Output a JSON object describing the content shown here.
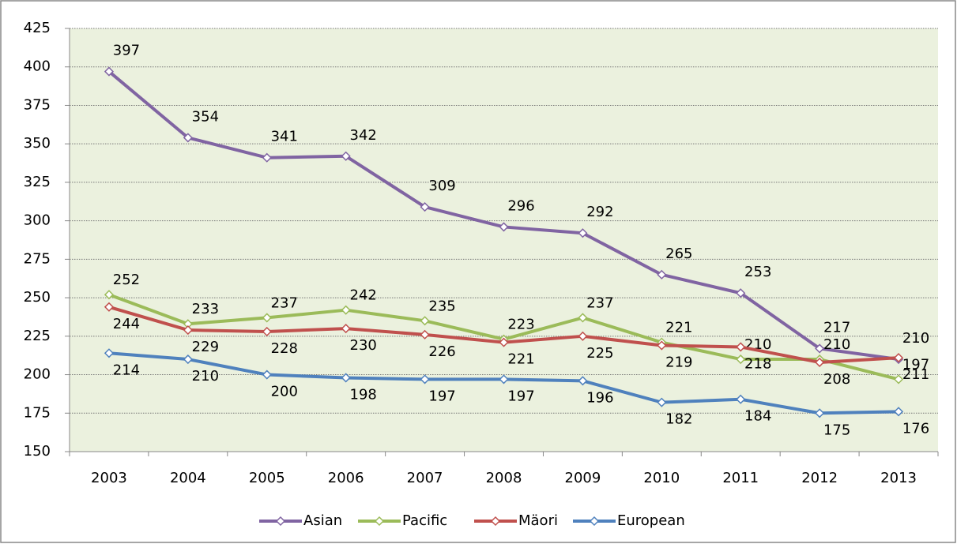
{
  "chart_data": {
    "type": "line",
    "categories": [
      "2003",
      "2004",
      "2005",
      "2006",
      "2007",
      "2008",
      "2009",
      "2010",
      "2011",
      "2012",
      "2013"
    ],
    "series": [
      {
        "name": "Asian",
        "color": "#8064a2",
        "values": [
          397,
          354,
          341,
          342,
          309,
          296,
          292,
          265,
          253,
          217,
          210
        ]
      },
      {
        "name": "Pacific",
        "color": "#9bbb59",
        "values": [
          252,
          233,
          237,
          242,
          235,
          223,
          237,
          221,
          210,
          210,
          197
        ]
      },
      {
        "name": "Mäori",
        "color": "#c0504d",
        "values": [
          244,
          229,
          228,
          230,
          226,
          221,
          225,
          219,
          218,
          208,
          211
        ]
      },
      {
        "name": "European",
        "color": "#4f81bd",
        "values": [
          214,
          210,
          200,
          198,
          197,
          197,
          196,
          182,
          184,
          175,
          176
        ]
      }
    ],
    "ylim": [
      150,
      425
    ],
    "yticks": [
      150,
      175,
      200,
      225,
      250,
      275,
      300,
      325,
      350,
      375,
      400,
      425
    ],
    "grid": true,
    "legend": "bottom"
  }
}
